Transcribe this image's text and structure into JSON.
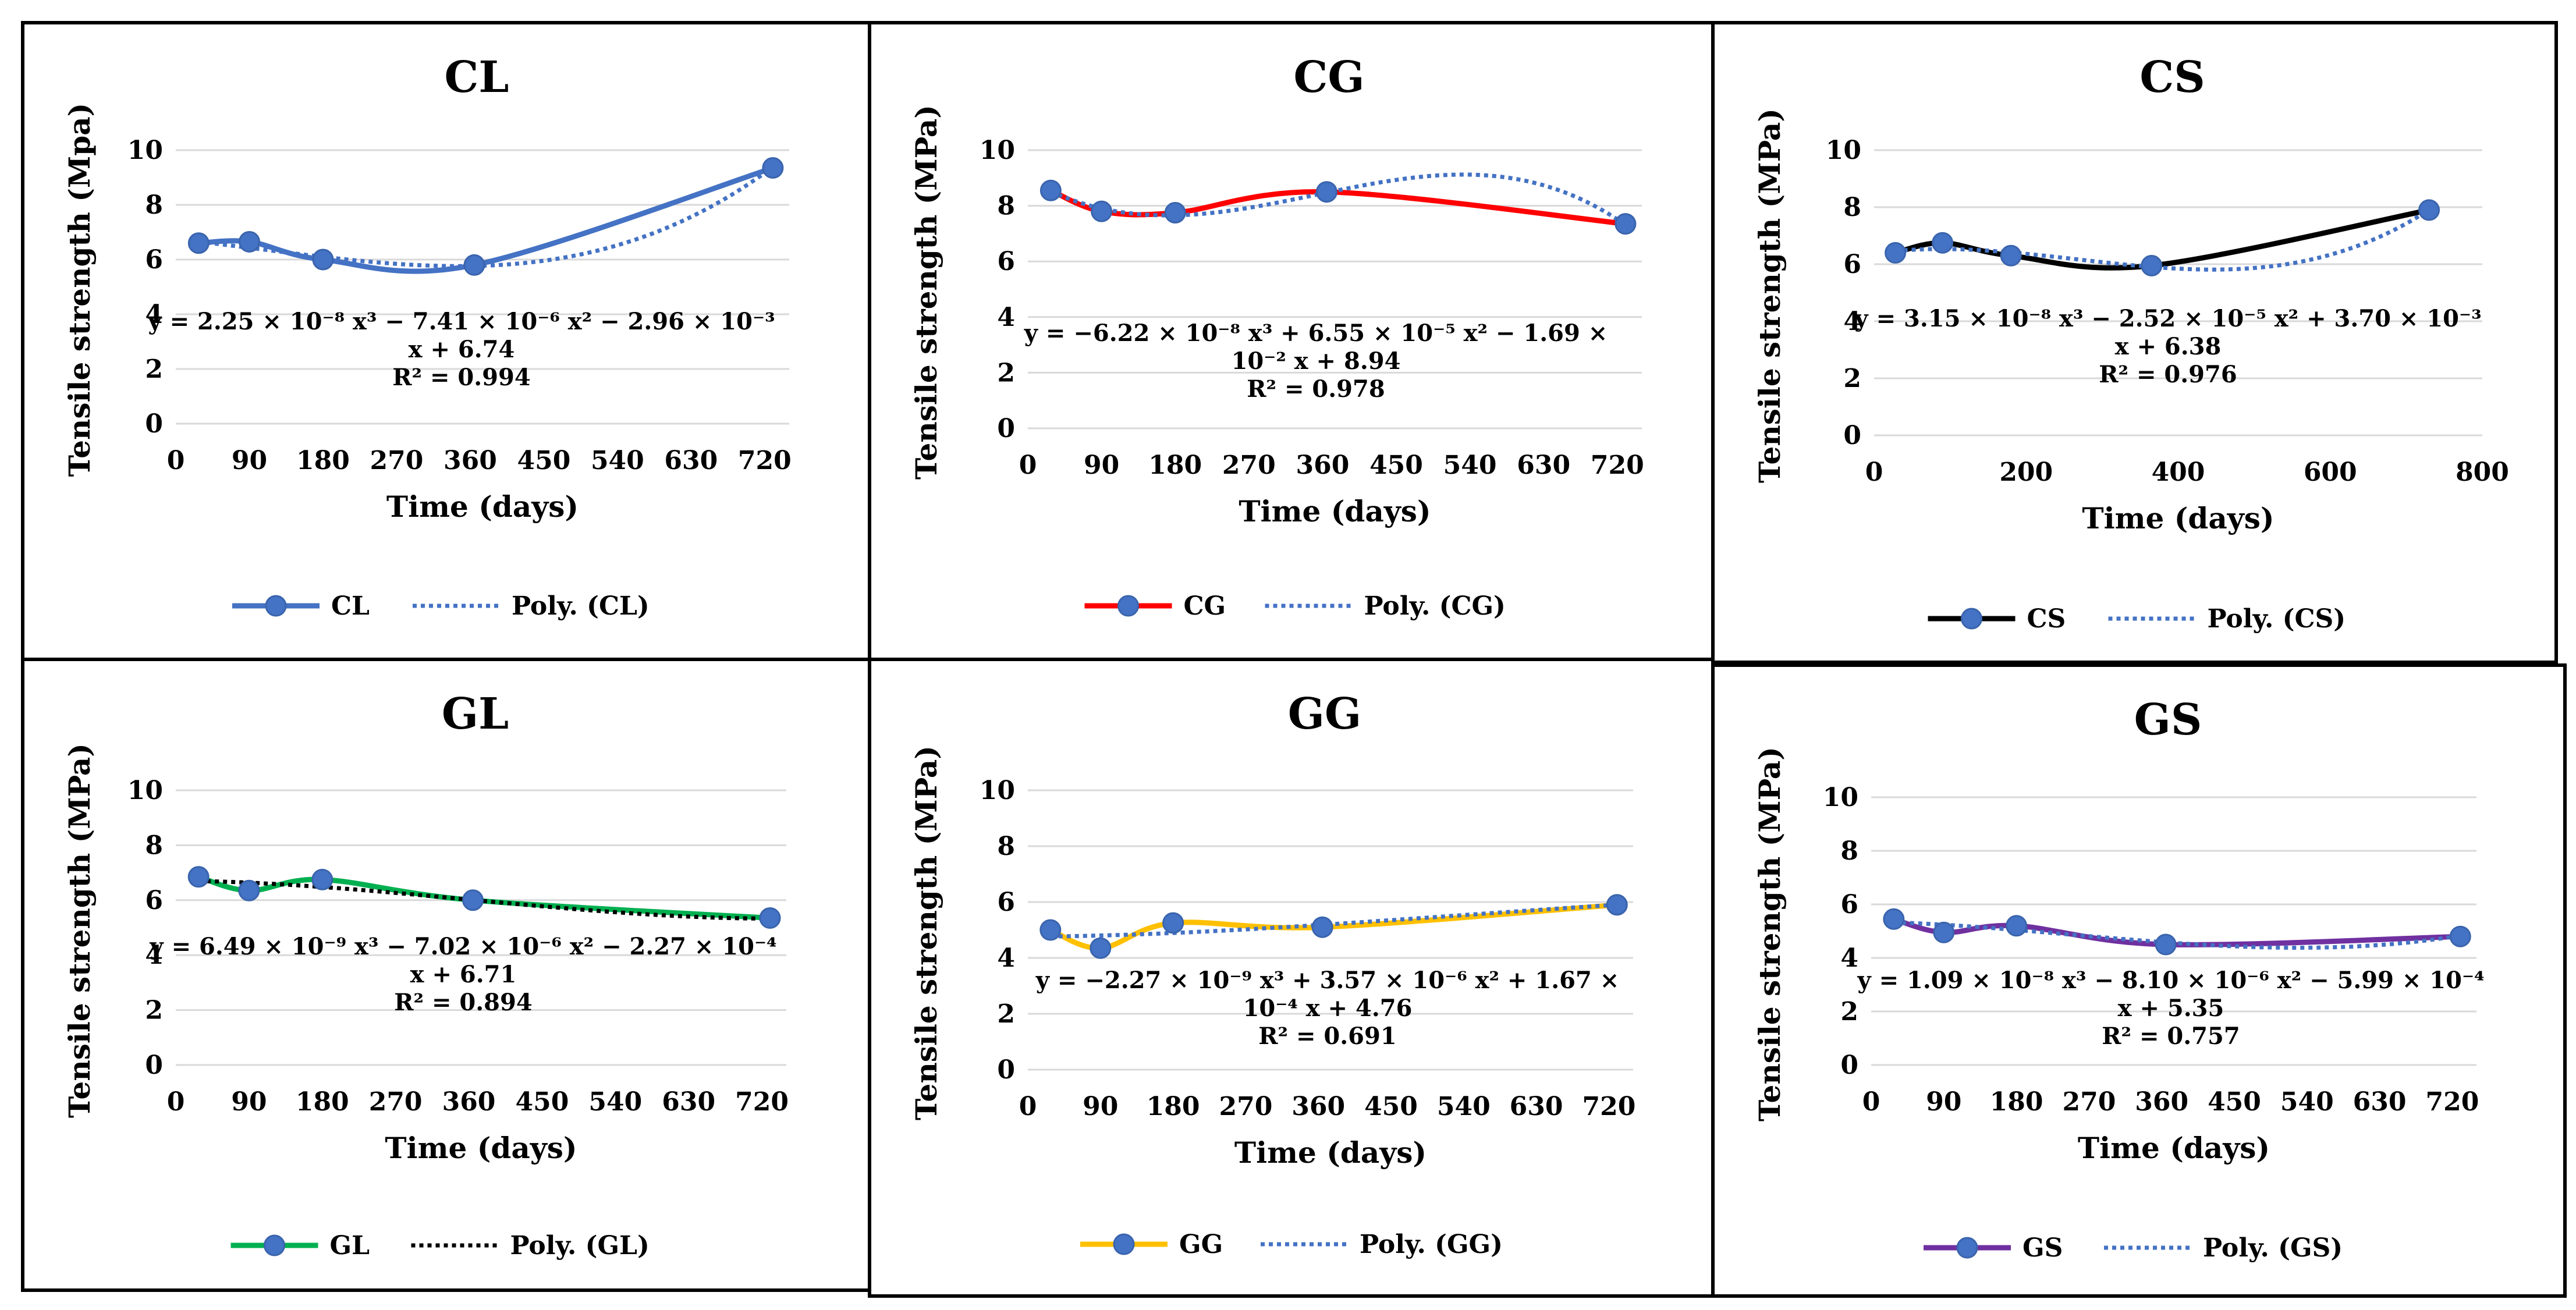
{
  "chart_data": [
    {
      "type": "line",
      "title": "CL",
      "xlabel": "Time (days)",
      "ylabel": "Tensile strength (Mpa)",
      "xlim": [
        0,
        750
      ],
      "xticks": [
        "0",
        "90",
        "180",
        "270",
        "360",
        "450",
        "540",
        "630",
        "720"
      ],
      "ylim": [
        0,
        10
      ],
      "yticks": [
        "0",
        "2",
        "4",
        "6",
        "8",
        "10"
      ],
      "series": [
        {
          "name": "CL",
          "color": "#4472C4",
          "x": [
            28,
            90,
            180,
            365,
            730
          ],
          "values": [
            6.6,
            6.65,
            6.0,
            5.8,
            9.35
          ]
        }
      ],
      "trendline": {
        "name": "Poly. (CL)",
        "color": "#4472C4",
        "coef": [
          2.25e-08,
          -7.41e-06,
          -0.00296,
          6.74
        ]
      },
      "equation": [
        "y = 2.25 × 10⁻⁸ x³ − 7.41 × 10⁻⁶ x² − 2.96 × 10⁻³",
        "x + 6.74",
        "R² = 0.994"
      ]
    },
    {
      "type": "line",
      "title": "CG",
      "xlabel": "Time (days)",
      "ylabel": "Tensile strength (MPa)",
      "xlim": [
        0,
        750
      ],
      "xticks": [
        "0",
        "90",
        "180",
        "270",
        "360",
        "450",
        "540",
        "630",
        "720"
      ],
      "ylim": [
        0,
        10
      ],
      "yticks": [
        "0",
        "2",
        "4",
        "6",
        "8",
        "10"
      ],
      "series": [
        {
          "name": "CG",
          "color": "#FF0000",
          "x": [
            28,
            90,
            180,
            365,
            730
          ],
          "values": [
            8.55,
            7.8,
            7.75,
            8.5,
            7.35
          ]
        }
      ],
      "trendline": {
        "name": "Poly. (CG)",
        "color": "#4472C4",
        "coef": [
          -6.22e-08,
          6.55e-05,
          -0.0169,
          8.94
        ]
      },
      "equation": [
        "y = −6.22 × 10⁻⁸ x³ + 6.55 × 10⁻⁵ x² − 1.69 ×",
        "10⁻² x + 8.94",
        "R² = 0.978"
      ]
    },
    {
      "type": "line",
      "title": "CS",
      "xlabel": "Time (days)",
      "ylabel": "Tensile strength (MPa)",
      "xlim": [
        0,
        800
      ],
      "xticks": [
        "0",
        "200",
        "400",
        "600",
        "800"
      ],
      "ylim": [
        0,
        10
      ],
      "yticks": [
        "0",
        "2",
        "4",
        "6",
        "8",
        "10"
      ],
      "series": [
        {
          "name": "CS",
          "color": "#000000",
          "x": [
            28,
            90,
            180,
            365,
            730
          ],
          "values": [
            6.4,
            6.75,
            6.3,
            5.95,
            7.9
          ]
        }
      ],
      "trendline": {
        "name": "Poly. (CS)",
        "color": "#4472C4",
        "coef": [
          3.15e-08,
          -2.52e-05,
          0.0037,
          6.38
        ]
      },
      "equation": [
        "y = 3.15 × 10⁻⁸ x³ − 2.52 × 10⁻⁵ x² + 3.70 × 10⁻³",
        "x + 6.38",
        "R² = 0.976"
      ]
    },
    {
      "type": "line",
      "title": "GL",
      "xlabel": "Time (days)",
      "ylabel": "Tensile strength (MPa)",
      "xlim": [
        0,
        750
      ],
      "xticks": [
        "0",
        "90",
        "180",
        "270",
        "360",
        "450",
        "540",
        "630",
        "720"
      ],
      "ylim": [
        0,
        10
      ],
      "yticks": [
        "0",
        "2",
        "4",
        "6",
        "8",
        "10"
      ],
      "series": [
        {
          "name": "GL",
          "color": "#00B050",
          "x": [
            28,
            90,
            180,
            365,
            730
          ],
          "values": [
            6.85,
            6.35,
            6.75,
            6.0,
            5.35
          ]
        }
      ],
      "trendline": {
        "name": "Poly. (GL)",
        "color": "#000000",
        "coef": [
          6.49e-09,
          -7.02e-06,
          -0.000227,
          6.71
        ]
      },
      "equation": [
        "y = 6.49 × 10⁻⁹ x³ − 7.02 × 10⁻⁶ x² − 2.27 × 10⁻⁴",
        "x + 6.71",
        "R² = 0.894"
      ]
    },
    {
      "type": "line",
      "title": "GG",
      "xlabel": "Time (days)",
      "ylabel": "Tensile strength (MPa)",
      "xlim": [
        0,
        750
      ],
      "xticks": [
        "0",
        "90",
        "180",
        "270",
        "360",
        "450",
        "540",
        "630",
        "720"
      ],
      "ylim": [
        0,
        10
      ],
      "yticks": [
        "0",
        "2",
        "4",
        "6",
        "8",
        "10"
      ],
      "series": [
        {
          "name": "GG",
          "color": "#FFC000",
          "x": [
            28,
            90,
            180,
            365,
            730
          ],
          "values": [
            5.0,
            4.35,
            5.25,
            5.1,
            5.9
          ]
        }
      ],
      "trendline": {
        "name": "Poly. (GG)",
        "color": "#4472C4",
        "coef": [
          -2.27e-09,
          3.57e-06,
          0.000167,
          4.76
        ]
      },
      "equation": [
        "y = −2.27 × 10⁻⁹ x³ + 3.57 × 10⁻⁶ x² + 1.67 ×",
        "10⁻⁴ x + 4.76",
        "R² = 0.691"
      ]
    },
    {
      "type": "line",
      "title": "GS",
      "xlabel": "Time (days)",
      "ylabel": "Tensile strength (MPa)",
      "xlim": [
        0,
        750
      ],
      "xticks": [
        "0",
        "90",
        "180",
        "270",
        "360",
        "450",
        "540",
        "630",
        "720"
      ],
      "ylim": [
        0,
        10
      ],
      "yticks": [
        "0",
        "2",
        "4",
        "6",
        "8",
        "10"
      ],
      "series": [
        {
          "name": "GS",
          "color": "#7030A0",
          "x": [
            28,
            90,
            180,
            365,
            730
          ],
          "values": [
            5.45,
            4.95,
            5.2,
            4.5,
            4.8
          ]
        }
      ],
      "trendline": {
        "name": "Poly. (GS)",
        "color": "#4472C4",
        "coef": [
          1.09e-08,
          -8.1e-06,
          -0.000599,
          5.35
        ]
      },
      "equation": [
        "y = 1.09 × 10⁻⁸ x³ − 8.10 × 10⁻⁶ x² − 5.99 × 10⁻⁴",
        "x + 5.35",
        "R² = 0.757"
      ]
    }
  ]
}
